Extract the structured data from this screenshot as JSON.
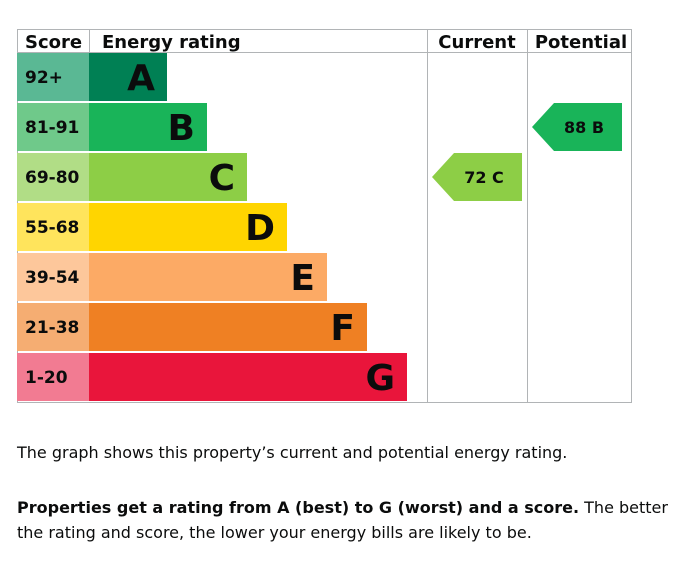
{
  "chart_data": {
    "type": "bar",
    "headers": {
      "score": "Score",
      "rating": "Energy rating",
      "current": "Current",
      "potential": "Potential"
    },
    "bands": [
      {
        "letter": "A",
        "range": "92+",
        "color": "#008054",
        "score_color": "#5ab894"
      },
      {
        "letter": "B",
        "range": "81-91",
        "color": "#19b459",
        "score_color": "#6fc98a"
      },
      {
        "letter": "C",
        "range": "69-80",
        "color": "#8dce46",
        "score_color": "#b1dd86"
      },
      {
        "letter": "D",
        "range": "55-68",
        "color": "#ffd500",
        "score_color": "#ffe45c"
      },
      {
        "letter": "E",
        "range": "39-54",
        "color": "#fcaa65",
        "score_color": "#fdc79b"
      },
      {
        "letter": "F",
        "range": "21-38",
        "color": "#ef8023",
        "score_color": "#f5ad72"
      },
      {
        "letter": "G",
        "range": "1-20",
        "color": "#e9153b",
        "score_color": "#f27b92"
      }
    ],
    "current": {
      "score": 72,
      "band": "C",
      "label": "72  C",
      "color": "#8dce46"
    },
    "potential": {
      "score": 88,
      "band": "B",
      "label": "88  B",
      "color": "#19b459"
    }
  },
  "description": {
    "line1": "The graph shows this property’s current and potential energy rating.",
    "bold": "Properties get a rating from A (best) to G (worst) and a score.",
    "rest": " The better the rating and score, the lower your energy bills are likely to be."
  }
}
